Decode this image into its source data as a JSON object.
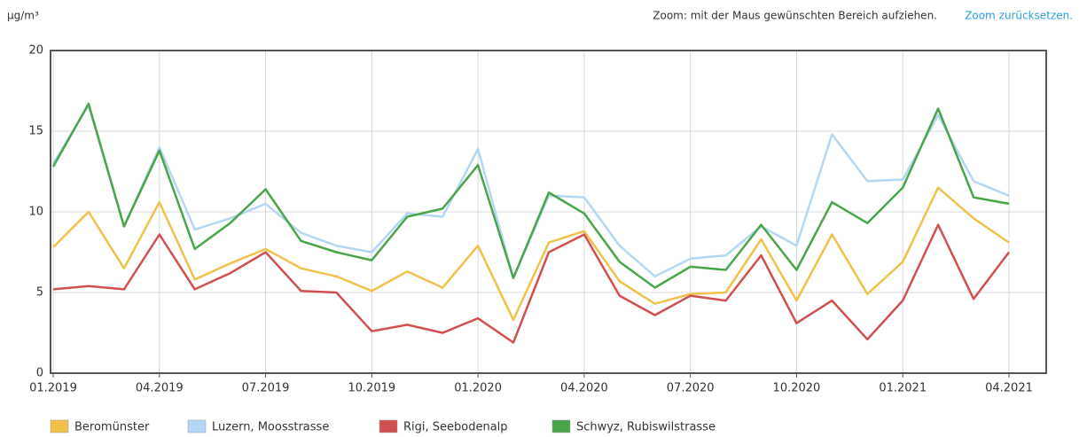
{
  "zoom_hint": "Zoom: mit der Maus gewünschten Bereich aufziehen.",
  "zoom_reset": "Zoom zurücksetzen.",
  "chart_data": {
    "type": "line",
    "y_label": "µg/m³",
    "categories": [
      "01.2019",
      null,
      null,
      "04.2019",
      null,
      null,
      "07.2019",
      null,
      null,
      "10.2019",
      null,
      null,
      "01.2020",
      null,
      null,
      "04.2020",
      null,
      null,
      "07.2020",
      null,
      null,
      "10.2020",
      null,
      null,
      "01.2021",
      null,
      null,
      "04.2021"
    ],
    "series": [
      {
        "name": "Beromünster",
        "color": "#f0c24b",
        "values": [
          7.8,
          10.0,
          6.5,
          10.6,
          5.8,
          6.8,
          7.7,
          6.5,
          6.0,
          5.1,
          6.3,
          5.3,
          7.9,
          3.3,
          8.1,
          8.8,
          5.7,
          4.3,
          4.9,
          5.0,
          8.3,
          4.5,
          8.6,
          4.9,
          6.9,
          11.5,
          9.6,
          8.1
        ]
      },
      {
        "name": "Luzern, Moosstrasse",
        "color": "#b3d7f5",
        "values": [
          13.0,
          16.6,
          9.1,
          14.0,
          8.9,
          9.6,
          10.5,
          8.7,
          7.9,
          7.5,
          9.9,
          9.7,
          13.9,
          5.9,
          11.0,
          10.9,
          7.9,
          6.0,
          7.1,
          7.3,
          9.1,
          7.9,
          14.8,
          11.9,
          12.0,
          16.0,
          11.9,
          11.0
        ]
      },
      {
        "name": "Rigi, Seebodenalp",
        "color": "#d05050",
        "values": [
          5.2,
          5.4,
          5.2,
          8.6,
          5.2,
          6.2,
          7.5,
          5.1,
          5.0,
          2.6,
          3.0,
          2.5,
          3.4,
          1.9,
          7.5,
          8.6,
          4.8,
          3.6,
          4.8,
          4.5,
          7.3,
          3.1,
          4.5,
          2.1,
          4.5,
          9.2,
          4.6,
          7.5
        ]
      },
      {
        "name": "Schwyz, Rubiswilstrasse",
        "color": "#4aa54a",
        "values": [
          12.8,
          16.7,
          9.1,
          13.8,
          7.7,
          9.3,
          11.4,
          8.2,
          7.5,
          7.0,
          9.7,
          10.2,
          12.9,
          5.9,
          11.2,
          9.9,
          6.9,
          5.3,
          6.6,
          6.4,
          9.2,
          6.4,
          10.6,
          9.3,
          11.5,
          16.4,
          10.9,
          10.5
        ]
      }
    ],
    "ylim": [
      0,
      20
    ],
    "yticks": [
      0,
      5,
      10,
      15,
      20
    ],
    "grid": true
  }
}
